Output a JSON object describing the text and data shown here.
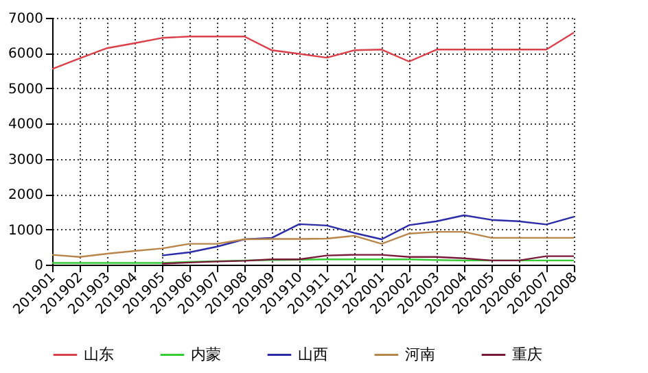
{
  "chart_data": {
    "type": "line",
    "categories": [
      "201901",
      "201902",
      "201903",
      "201904",
      "201905",
      "201906",
      "201907",
      "201908",
      "201909",
      "201910",
      "201911",
      "201912",
      "202001",
      "202002",
      "202003",
      "202004",
      "202005",
      "202006",
      "202007",
      "202008"
    ],
    "series": [
      {
        "name": "山东",
        "color": "#d9404a",
        "values": [
          5550,
          5850,
          6140,
          6280,
          6430,
          6470,
          6470,
          6470,
          6080,
          5980,
          5870,
          6080,
          6100,
          5760,
          6100,
          6100,
          6100,
          6100,
          6100,
          6580
        ]
      },
      {
        "name": "内蒙",
        "color": "#33cc33",
        "values": [
          50,
          50,
          50,
          50,
          50,
          80,
          100,
          120,
          130,
          140,
          150,
          150,
          150,
          150,
          130,
          120,
          120,
          120,
          120,
          120
        ]
      },
      {
        "name": "山西",
        "color": "#2b2ba8",
        "values": [
          null,
          null,
          null,
          null,
          260,
          350,
          510,
          720,
          760,
          1150,
          1110,
          900,
          720,
          1120,
          1230,
          1400,
          1270,
          1230,
          1140,
          1360
        ]
      },
      {
        "name": "河南",
        "color": "#b8864a",
        "values": [
          280,
          220,
          310,
          390,
          460,
          590,
          590,
          720,
          730,
          730,
          740,
          820,
          590,
          880,
          930,
          930,
          760,
          760,
          760,
          760
        ]
      },
      {
        "name": "重庆",
        "color": "#7a1a3a",
        "values": [
          null,
          null,
          null,
          null,
          30,
          60,
          90,
          110,
          150,
          150,
          260,
          280,
          280,
          220,
          220,
          180,
          120,
          120,
          240,
          240
        ]
      }
    ],
    "ylim": [
      0,
      7000
    ],
    "yticks": [
      0,
      1000,
      2000,
      3000,
      4000,
      5000,
      6000,
      7000
    ],
    "grid": true,
    "legend": "bottom",
    "marker": "none",
    "line_style": "solid"
  }
}
